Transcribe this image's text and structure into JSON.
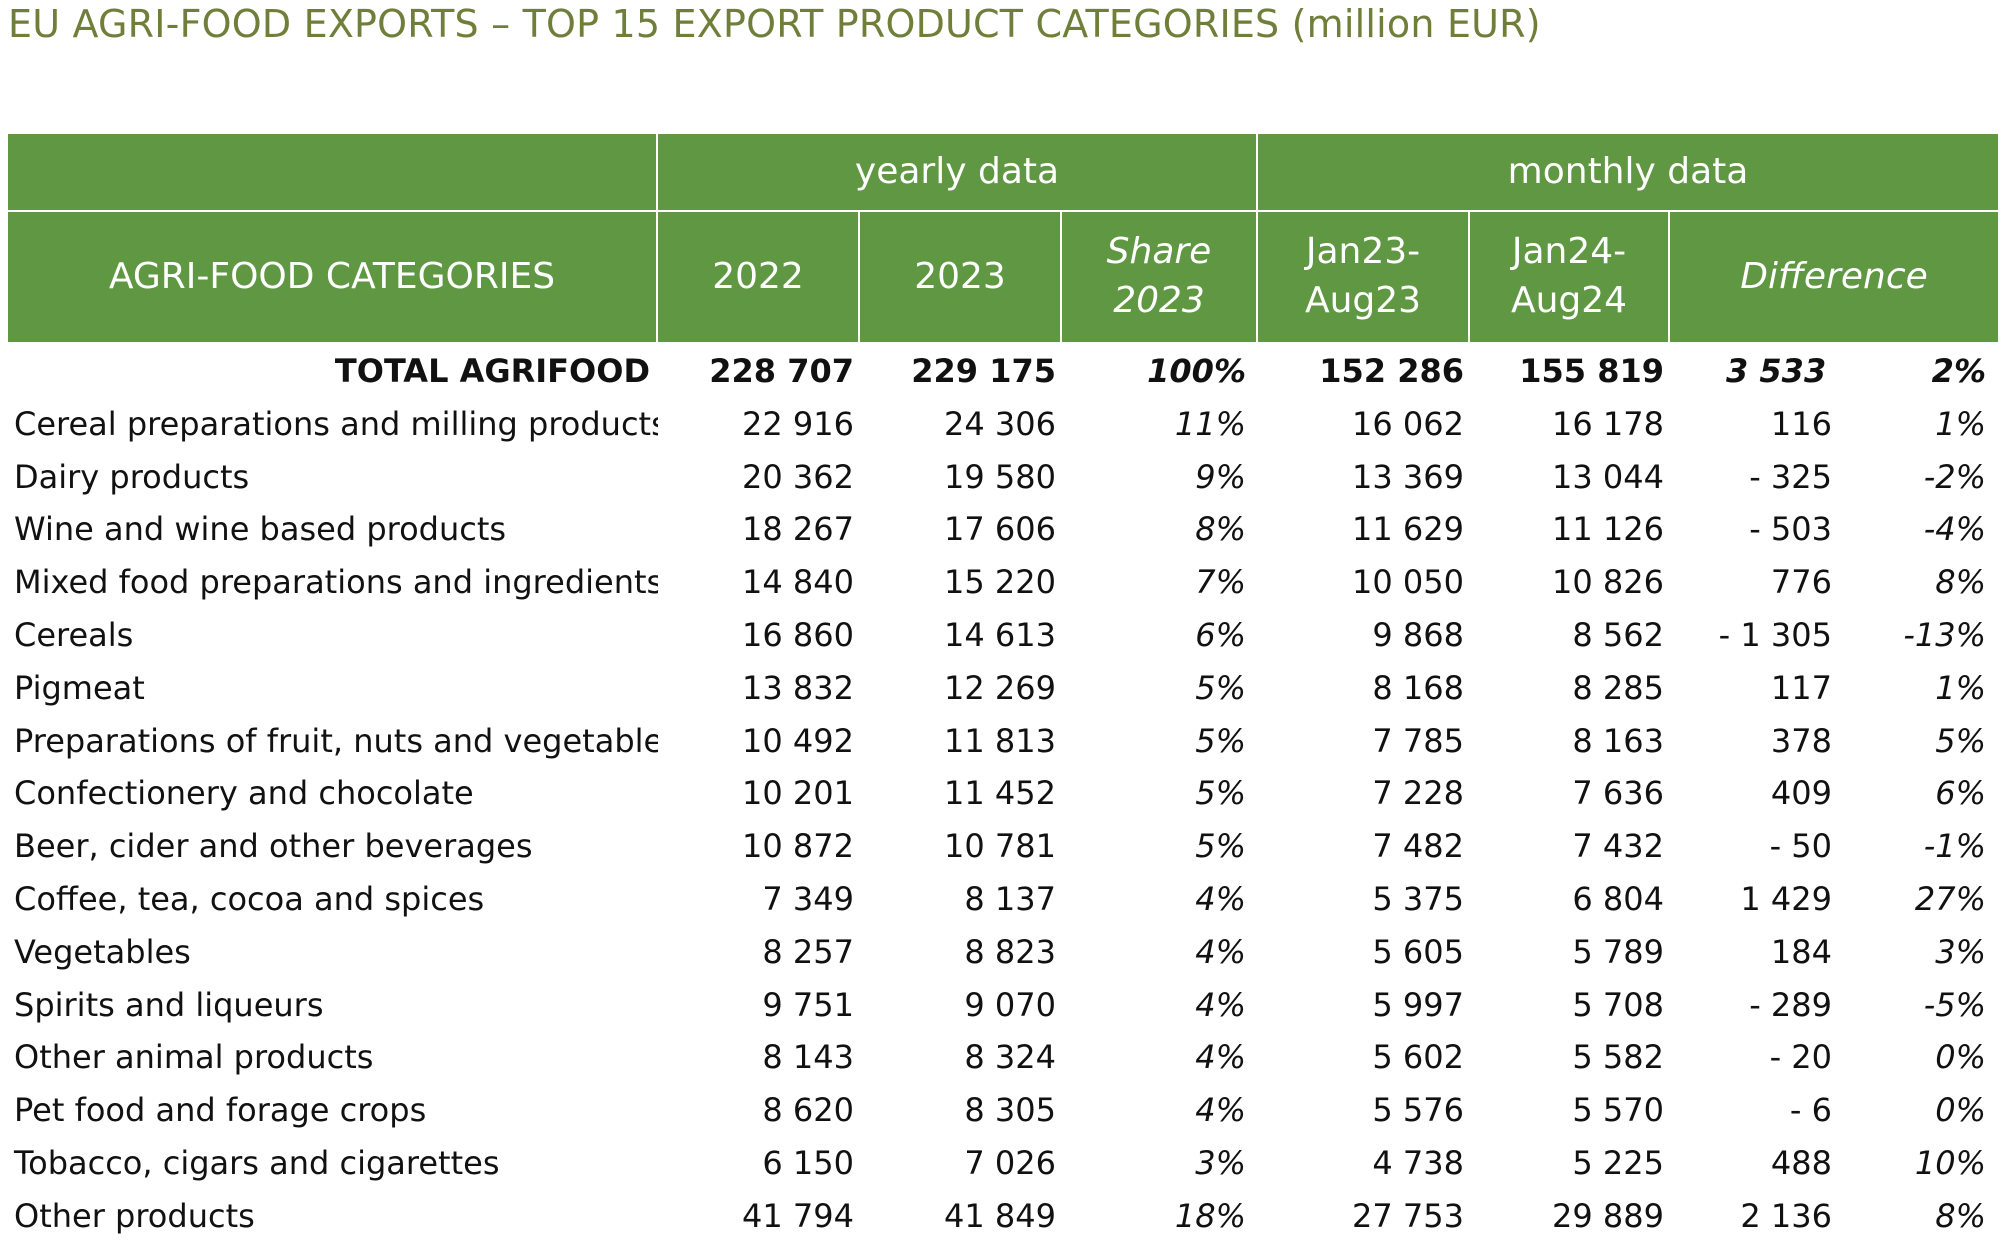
{
  "title": "EU AGRI-FOOD EXPORTS – TOP 15 EXPORT PRODUCT CATEGORIES (million EUR)",
  "colors": {
    "header_bg": "#5f9742",
    "header_text": "#ffffff",
    "title_text": "#6f7f3a"
  },
  "header": {
    "group_yearly": "yearly data",
    "group_monthly": "monthly data",
    "col_categories": "AGRI-FOOD CATEGORIES",
    "col_2022": "2022",
    "col_2023": "2023",
    "col_share_l1": "Share",
    "col_share_l2": "2023",
    "col_jan23_l1": "Jan23-",
    "col_jan23_l2": "Aug23",
    "col_jan24_l1": "Jan24-",
    "col_jan24_l2": "Aug24",
    "col_difference": "Difference"
  },
  "total": {
    "name": "TOTAL AGRIFOOD",
    "y2022": "228 707",
    "y2023": "229 175",
    "share": "100%",
    "m23": "152 286",
    "m24": "155 819",
    "diff": "3 533",
    "pct": "2%"
  },
  "rows": [
    {
      "name": "Cereal preparations and milling products",
      "y2022": "22 916",
      "y2023": "24 306",
      "share": "11%",
      "m23": "16 062",
      "m24": "16 178",
      "diff": "116",
      "pct": "1%"
    },
    {
      "name": "Dairy products",
      "y2022": "20 362",
      "y2023": "19 580",
      "share": "9%",
      "m23": "13 369",
      "m24": "13 044",
      "diff": "-  325",
      "pct": "-2%"
    },
    {
      "name": "Wine and wine based products",
      "y2022": "18 267",
      "y2023": "17 606",
      "share": "8%",
      "m23": "11 629",
      "m24": "11 126",
      "diff": "-  503",
      "pct": "-4%"
    },
    {
      "name": "Mixed food preparations and ingredients",
      "y2022": "14 840",
      "y2023": "15 220",
      "share": "7%",
      "m23": "10 050",
      "m24": "10 826",
      "diff": "776",
      "pct": "8%"
    },
    {
      "name": "Cereals",
      "y2022": "16 860",
      "y2023": "14 613",
      "share": "6%",
      "m23": "9 868",
      "m24": "8 562",
      "diff": "- 1 305",
      "pct": "-13%"
    },
    {
      "name": "Pigmeat",
      "y2022": "13 832",
      "y2023": "12 269",
      "share": "5%",
      "m23": "8 168",
      "m24": "8 285",
      "diff": "117",
      "pct": "1%"
    },
    {
      "name": "Preparations of fruit, nuts and vegetables",
      "y2022": "10 492",
      "y2023": "11 813",
      "share": "5%",
      "m23": "7 785",
      "m24": "8 163",
      "diff": "378",
      "pct": "5%"
    },
    {
      "name": "Confectionery and chocolate",
      "y2022": "10 201",
      "y2023": "11 452",
      "share": "5%",
      "m23": "7 228",
      "m24": "7 636",
      "diff": "409",
      "pct": "6%"
    },
    {
      "name": "Beer, cider and other beverages",
      "y2022": "10 872",
      "y2023": "10 781",
      "share": "5%",
      "m23": "7 482",
      "m24": "7 432",
      "diff": "-  50",
      "pct": "-1%"
    },
    {
      "name": "Coffee, tea, cocoa and spices",
      "y2022": "7 349",
      "y2023": "8 137",
      "share": "4%",
      "m23": "5 375",
      "m24": "6 804",
      "diff": "1 429",
      "pct": "27%"
    },
    {
      "name": "Vegetables",
      "y2022": "8 257",
      "y2023": "8 823",
      "share": "4%",
      "m23": "5 605",
      "m24": "5 789",
      "diff": "184",
      "pct": "3%"
    },
    {
      "name": "Spirits and liqueurs",
      "y2022": "9 751",
      "y2023": "9 070",
      "share": "4%",
      "m23": "5 997",
      "m24": "5 708",
      "diff": "-  289",
      "pct": "-5%"
    },
    {
      "name": "Other animal products",
      "y2022": "8 143",
      "y2023": "8 324",
      "share": "4%",
      "m23": "5 602",
      "m24": "5 582",
      "diff": "-  20",
      "pct": "0%"
    },
    {
      "name": "Pet food and forage crops",
      "y2022": "8 620",
      "y2023": "8 305",
      "share": "4%",
      "m23": "5 576",
      "m24": "5 570",
      "diff": "-  6",
      "pct": "0%"
    },
    {
      "name": "Tobacco, cigars and cigarettes",
      "y2022": "6 150",
      "y2023": "7 026",
      "share": "3%",
      "m23": "4 738",
      "m24": "5 225",
      "diff": "488",
      "pct": "10%"
    },
    {
      "name": "Other products",
      "y2022": "41 794",
      "y2023": "41 849",
      "share": "18%",
      "m23": "27 753",
      "m24": "29 889",
      "diff": "2 136",
      "pct": "8%"
    }
  ]
}
